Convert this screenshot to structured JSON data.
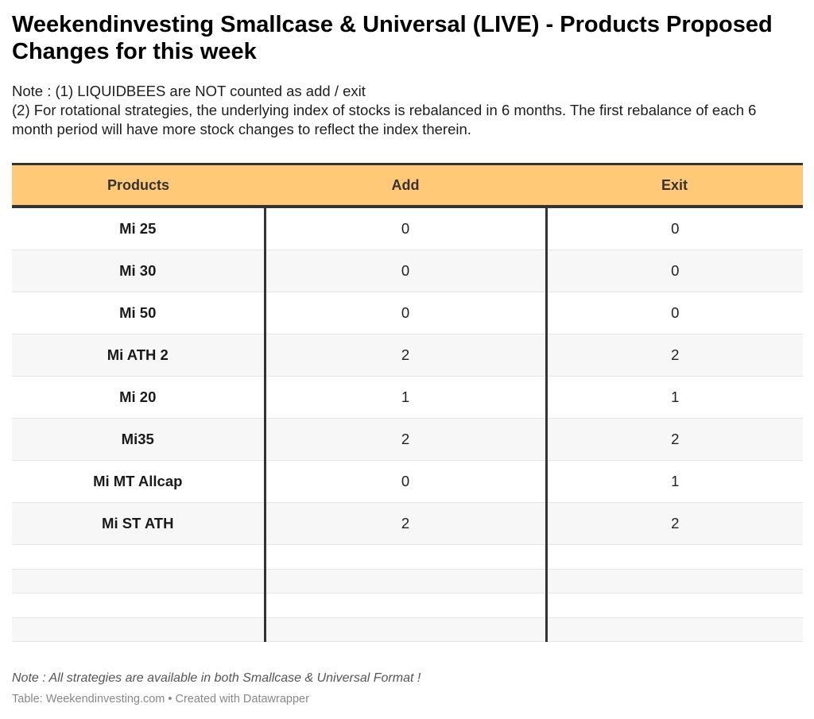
{
  "title": "Weekendinvesting Smallcase & Universal (LIVE) - Products Proposed Changes for this week",
  "notes": {
    "line1": "Note : (1) LIQUIDBEES are NOT counted as add / exit",
    "line2": "(2) For rotational strategies, the underlying index of stocks is rebalanced in 6 months. The first rebalance of each 6 month period will have more stock changes to reflect the index therein."
  },
  "table": {
    "headers": [
      "Products",
      "Add",
      "Exit"
    ],
    "rows": [
      [
        "Mi 25",
        "0",
        "0"
      ],
      [
        "Mi 30",
        "0",
        "0"
      ],
      [
        "Mi 50",
        "0",
        "0"
      ],
      [
        "Mi ATH 2",
        "2",
        "2"
      ],
      [
        "Mi 20",
        "1",
        "1"
      ],
      [
        "Mi35",
        "2",
        "2"
      ],
      [
        "Mi MT Allcap",
        "0",
        "1"
      ],
      [
        "Mi ST ATH",
        "2",
        "2"
      ]
    ],
    "blank_rows": 4
  },
  "footnote": "Note : All strategies are available in both Smallcase & Universal Format !",
  "credit": "Table: Weekendinvesting.com • Created with Datawrapper",
  "colors": {
    "header_bg": "#ffc978",
    "border": "#333333",
    "stripe": "#f7f7f7"
  }
}
